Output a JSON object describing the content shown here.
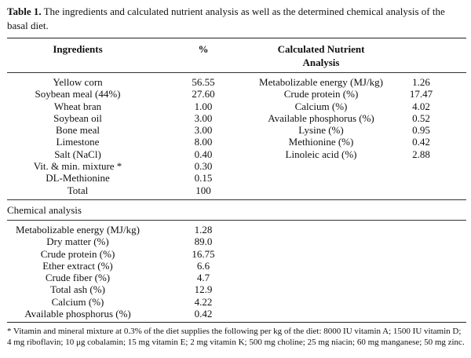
{
  "caption": {
    "label": "Table 1.",
    "text": " The ingredients and calculated nutrient analysis as well as the determined chemical analysis of the basal diet."
  },
  "headers": {
    "ingredients": "Ingredients",
    "percent": "%",
    "calc": "Calculated Nutrient Analysis",
    "calc_value": ""
  },
  "ingredients": [
    {
      "name": "Yellow corn",
      "value": "56.55"
    },
    {
      "name": "Soybean meal (44%)",
      "value": "27.60"
    },
    {
      "name": "Wheat bran",
      "value": "1.00"
    },
    {
      "name": "Soybean oil",
      "value": "3.00"
    },
    {
      "name": "Bone meal",
      "value": "3.00"
    },
    {
      "name": "Limestone",
      "value": "8.00"
    },
    {
      "name": "Salt (NaCl)",
      "value": "0.40"
    },
    {
      "name": "Vit. & min. mixture *",
      "value": "0.30"
    },
    {
      "name": "DL-Methionine",
      "value": "0.15"
    },
    {
      "name": "Total",
      "value": "100"
    }
  ],
  "calculated": [
    {
      "name": "Metabolizable energy (MJ/kg)",
      "value": "1.26"
    },
    {
      "name": "Crude protein (%)",
      "value": "17.47"
    },
    {
      "name": "Calcium (%)",
      "value": "4.02"
    },
    {
      "name": "Available phosphorus (%)",
      "value": "0.52"
    },
    {
      "name": "Lysine (%)",
      "value": "0.95"
    },
    {
      "name": "Methionine (%)",
      "value": "0.42"
    },
    {
      "name": "Linoleic acid (%)",
      "value": "2.88"
    }
  ],
  "chemical": {
    "title": "Chemical analysis",
    "rows": [
      {
        "name": "Metabolizable energy (MJ/kg)",
        "value": "1.28"
      },
      {
        "name": "Dry matter (%)",
        "value": "89.0"
      },
      {
        "name": "Crude protein (%)",
        "value": "16.75"
      },
      {
        "name": "Ether extract (%)",
        "value": "6.6"
      },
      {
        "name": "Crude fiber (%)",
        "value": "4.7"
      },
      {
        "name": "Total ash (%)",
        "value": "12.9"
      },
      {
        "name": "Calcium (%)",
        "value": "4.22"
      },
      {
        "name": "Available phosphorus (%)",
        "value": "0.42"
      }
    ]
  },
  "footnote": "* Vitamin and mineral mixture at 0.3% of the diet supplies the following per kg of the diet: 8000 IU vitamin A; 1500 IU vitamin D; 4 mg riboflavin; 10 μg cobalamin; 15 mg vitamin E; 2 mg vitamin K; 500 mg choline; 25 mg niacin; 60 mg manganese; 50 mg zinc."
}
